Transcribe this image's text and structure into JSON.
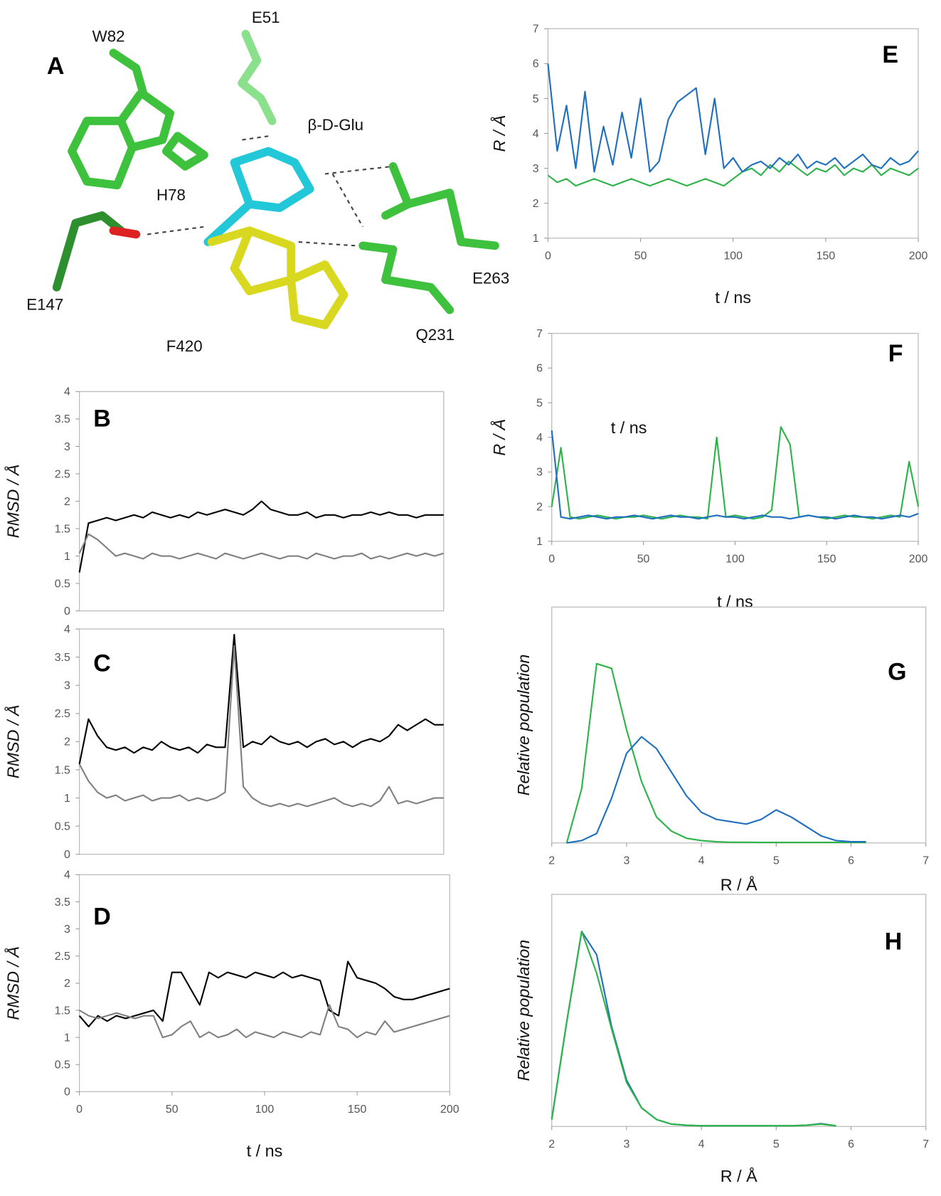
{
  "structure": {
    "panel_label": "A",
    "residues": [
      "W82",
      "E51",
      "β-D-Glu",
      "H78",
      "E147",
      "F420",
      "Q231",
      "E263"
    ]
  },
  "chart_data": [
    {
      "type": "line",
      "panel_label": "B",
      "y_label": "RMSD / Å",
      "xlim": [
        0,
        200
      ],
      "ylim": [
        0,
        4
      ],
      "yticks": [
        0,
        0.5,
        1,
        1.5,
        2,
        2.5,
        3,
        3.5,
        4
      ],
      "x": [
        0,
        5,
        10,
        15,
        20,
        25,
        30,
        35,
        40,
        45,
        50,
        55,
        60,
        65,
        70,
        75,
        80,
        85,
        90,
        95,
        100,
        105,
        110,
        115,
        120,
        125,
        130,
        135,
        140,
        145,
        150,
        155,
        160,
        165,
        170,
        175,
        180,
        185,
        190,
        195,
        200
      ],
      "series": [
        {
          "color": "#000000",
          "values": [
            0.7,
            1.6,
            1.65,
            1.7,
            1.65,
            1.7,
            1.75,
            1.7,
            1.8,
            1.75,
            1.7,
            1.75,
            1.7,
            1.8,
            1.75,
            1.8,
            1.85,
            1.8,
            1.75,
            1.85,
            2.0,
            1.85,
            1.8,
            1.75,
            1.75,
            1.8,
            1.7,
            1.75,
            1.75,
            1.7,
            1.75,
            1.75,
            1.8,
            1.75,
            1.8,
            1.75,
            1.75,
            1.7,
            1.75,
            1.75,
            1.75
          ]
        },
        {
          "color": "#808080",
          "values": [
            1.05,
            1.4,
            1.3,
            1.15,
            1.0,
            1.05,
            1.0,
            0.95,
            1.05,
            1.0,
            1.0,
            0.95,
            1.0,
            1.05,
            1.0,
            0.95,
            1.05,
            1.0,
            0.95,
            1.0,
            1.05,
            1.0,
            0.95,
            1.0,
            1.0,
            0.95,
            1.05,
            1.0,
            0.95,
            1.0,
            1.0,
            1.05,
            0.95,
            1.0,
            0.95,
            1.0,
            1.05,
            1.0,
            1.05,
            1.0,
            1.05
          ]
        }
      ]
    },
    {
      "type": "line",
      "panel_label": "C",
      "y_label": "RMSD / Å",
      "xlim": [
        0,
        200
      ],
      "ylim": [
        0,
        4
      ],
      "yticks": [
        0,
        0.5,
        1,
        1.5,
        2,
        2.5,
        3,
        3.5,
        4
      ],
      "x": [
        0,
        5,
        10,
        15,
        20,
        25,
        30,
        35,
        40,
        45,
        50,
        55,
        60,
        65,
        70,
        75,
        80,
        85,
        90,
        95,
        100,
        105,
        110,
        115,
        120,
        125,
        130,
        135,
        140,
        145,
        150,
        155,
        160,
        165,
        170,
        175,
        180,
        185,
        190,
        195,
        200
      ],
      "series": [
        {
          "color": "#000000",
          "values": [
            1.6,
            2.4,
            2.1,
            1.9,
            1.85,
            1.9,
            1.8,
            1.9,
            1.85,
            2.0,
            1.9,
            1.85,
            1.9,
            1.8,
            1.95,
            1.9,
            1.9,
            3.9,
            1.9,
            2.0,
            1.95,
            2.1,
            2.0,
            1.95,
            2.0,
            1.9,
            2.0,
            2.05,
            1.95,
            2.0,
            1.9,
            2.0,
            2.05,
            2.0,
            2.1,
            2.3,
            2.2,
            2.3,
            2.4,
            2.3,
            2.3
          ]
        },
        {
          "color": "#808080",
          "values": [
            1.6,
            1.3,
            1.1,
            1.0,
            1.05,
            0.95,
            1.0,
            1.05,
            0.95,
            1.0,
            1.0,
            1.05,
            0.95,
            1.0,
            0.95,
            1.0,
            1.1,
            3.7,
            1.2,
            1.0,
            0.9,
            0.85,
            0.9,
            0.85,
            0.9,
            0.85,
            0.9,
            0.95,
            1.0,
            0.9,
            0.85,
            0.9,
            0.85,
            0.95,
            1.2,
            0.9,
            0.95,
            0.9,
            0.95,
            1.0,
            1.0
          ]
        }
      ]
    },
    {
      "type": "line",
      "panel_label": "D",
      "y_label": "RMSD / Å",
      "x_label": "t / ns",
      "xlim": [
        0,
        200
      ],
      "xticks": [
        0,
        50,
        100,
        150,
        200
      ],
      "ylim": [
        0,
        4
      ],
      "yticks": [
        0,
        0.5,
        1,
        1.5,
        2,
        2.5,
        3,
        3.5,
        4
      ],
      "x": [
        0,
        5,
        10,
        15,
        20,
        25,
        30,
        35,
        40,
        45,
        50,
        55,
        60,
        65,
        70,
        75,
        80,
        85,
        90,
        95,
        100,
        105,
        110,
        115,
        120,
        125,
        130,
        135,
        140,
        145,
        150,
        155,
        160,
        165,
        170,
        175,
        180,
        185,
        190,
        195,
        200
      ],
      "series": [
        {
          "color": "#000000",
          "values": [
            1.4,
            1.2,
            1.4,
            1.3,
            1.4,
            1.35,
            1.4,
            1.45,
            1.5,
            1.3,
            2.2,
            2.2,
            1.9,
            1.6,
            2.2,
            2.1,
            2.2,
            2.15,
            2.1,
            2.2,
            2.15,
            2.1,
            2.2,
            2.1,
            2.15,
            2.1,
            2.05,
            1.5,
            1.4,
            2.4,
            2.1,
            2.05,
            2.0,
            1.9,
            1.75,
            1.7,
            1.7,
            1.75,
            1.8,
            1.85,
            1.9
          ]
        },
        {
          "color": "#808080",
          "values": [
            1.5,
            1.4,
            1.35,
            1.4,
            1.45,
            1.4,
            1.35,
            1.4,
            1.4,
            1.0,
            1.05,
            1.2,
            1.3,
            1.0,
            1.1,
            1.0,
            1.05,
            1.15,
            1.0,
            1.1,
            1.05,
            1.0,
            1.1,
            1.05,
            1.0,
            1.1,
            1.05,
            1.6,
            1.2,
            1.15,
            1.0,
            1.1,
            1.05,
            1.3,
            1.1,
            1.15,
            1.2,
            1.25,
            1.3,
            1.35,
            1.4
          ]
        }
      ]
    },
    {
      "type": "line",
      "panel_label": "E",
      "y_label": "R / Å",
      "x_label": "t / ns",
      "xlim": [
        0,
        200
      ],
      "xticks": [
        0,
        50,
        100,
        150,
        200
      ],
      "ylim": [
        1,
        7
      ],
      "yticks": [
        1,
        2,
        3,
        4,
        5,
        6,
        7
      ],
      "x": [
        0,
        5,
        10,
        15,
        20,
        25,
        30,
        35,
        40,
        45,
        50,
        55,
        60,
        65,
        70,
        75,
        80,
        85,
        90,
        95,
        100,
        105,
        110,
        115,
        120,
        125,
        130,
        135,
        140,
        145,
        150,
        155,
        160,
        165,
        170,
        175,
        180,
        185,
        190,
        195,
        200
      ],
      "series": [
        {
          "color": "#2db34a",
          "values": [
            2.8,
            2.6,
            2.7,
            2.5,
            2.6,
            2.7,
            2.6,
            2.5,
            2.6,
            2.7,
            2.6,
            2.5,
            2.6,
            2.7,
            2.6,
            2.5,
            2.6,
            2.7,
            2.6,
            2.5,
            2.7,
            2.9,
            3.0,
            2.8,
            3.1,
            2.9,
            3.2,
            3.0,
            2.8,
            3.0,
            2.9,
            3.1,
            2.8,
            3.0,
            2.9,
            3.1,
            2.8,
            3.0,
            2.9,
            2.8,
            3.0
          ]
        },
        {
          "color": "#1f6fbf",
          "values": [
            6.0,
            3.5,
            4.8,
            3.0,
            5.2,
            2.9,
            4.2,
            3.1,
            4.6,
            3.3,
            5.0,
            2.9,
            3.2,
            4.4,
            4.9,
            5.1,
            5.3,
            3.4,
            5.0,
            3.0,
            3.3,
            2.9,
            3.1,
            3.2,
            3.0,
            3.3,
            3.1,
            3.4,
            3.0,
            3.2,
            3.1,
            3.3,
            3.0,
            3.2,
            3.4,
            3.1,
            3.0,
            3.3,
            3.1,
            3.2,
            3.5
          ]
        }
      ]
    },
    {
      "type": "line",
      "panel_label": "F",
      "y_label": "R / Å",
      "x_label": "t / ns",
      "annotation": "t / ns",
      "xlim": [
        0,
        200
      ],
      "xticks": [
        0,
        50,
        100,
        150,
        200
      ],
      "ylim": [
        1,
        7
      ],
      "yticks": [
        1,
        2,
        3,
        4,
        5,
        6,
        7
      ],
      "x": [
        0,
        5,
        10,
        15,
        20,
        25,
        30,
        35,
        40,
        45,
        50,
        55,
        60,
        65,
        70,
        75,
        80,
        85,
        90,
        95,
        100,
        105,
        110,
        115,
        120,
        125,
        130,
        135,
        140,
        145,
        150,
        155,
        160,
        165,
        170,
        175,
        180,
        185,
        190,
        195,
        200
      ],
      "series": [
        {
          "color": "#2db34a",
          "values": [
            2.0,
            3.7,
            1.7,
            1.65,
            1.7,
            1.75,
            1.7,
            1.65,
            1.7,
            1.7,
            1.75,
            1.7,
            1.65,
            1.7,
            1.75,
            1.7,
            1.7,
            1.65,
            4.0,
            1.7,
            1.75,
            1.7,
            1.65,
            1.7,
            1.9,
            4.3,
            3.8,
            1.7,
            1.75,
            1.7,
            1.65,
            1.7,
            1.75,
            1.7,
            1.7,
            1.65,
            1.7,
            1.75,
            1.7,
            3.3,
            2.0
          ]
        },
        {
          "color": "#1f6fbf",
          "values": [
            4.2,
            1.7,
            1.65,
            1.7,
            1.75,
            1.7,
            1.65,
            1.7,
            1.7,
            1.75,
            1.7,
            1.65,
            1.7,
            1.75,
            1.7,
            1.7,
            1.65,
            1.7,
            1.75,
            1.7,
            1.7,
            1.65,
            1.7,
            1.75,
            1.7,
            1.7,
            1.65,
            1.7,
            1.75,
            1.7,
            1.7,
            1.65,
            1.7,
            1.75,
            1.7,
            1.7,
            1.65,
            1.7,
            1.75,
            1.7,
            1.8
          ]
        }
      ]
    },
    {
      "type": "line",
      "panel_label": "G",
      "y_label": "Relative population",
      "x_label": "R / Å",
      "xlim": [
        2,
        7
      ],
      "xticks": [
        2,
        3,
        4,
        5,
        6,
        7
      ],
      "ylim": [
        0,
        1
      ],
      "x": [
        2.2,
        2.4,
        2.6,
        2.8,
        3.0,
        3.2,
        3.4,
        3.6,
        3.8,
        4.0,
        4.2,
        4.4,
        4.6,
        4.8,
        5.0,
        5.2,
        5.4,
        5.6,
        5.8,
        6.0,
        6.2
      ],
      "series": [
        {
          "color": "#2db34a",
          "values": [
            0,
            0.23,
            0.76,
            0.74,
            0.48,
            0.26,
            0.11,
            0.05,
            0.02,
            0.01,
            0.005,
            0.003,
            0.003,
            0.002,
            0.002,
            0.002,
            0.002,
            0.002,
            0.002,
            0.002,
            0.002
          ]
        },
        {
          "color": "#1f6fbf",
          "values": [
            0,
            0.01,
            0.04,
            0.19,
            0.38,
            0.45,
            0.4,
            0.3,
            0.2,
            0.13,
            0.1,
            0.09,
            0.08,
            0.1,
            0.14,
            0.11,
            0.07,
            0.03,
            0.01,
            0.005,
            0.005
          ]
        }
      ]
    },
    {
      "type": "line",
      "panel_label": "H",
      "y_label": "Relative population",
      "x_label": "R / Å",
      "xlim": [
        2,
        7
      ],
      "xticks": [
        2,
        3,
        4,
        5,
        6,
        7
      ],
      "ylim": [
        0,
        1
      ],
      "x": [
        2.0,
        2.2,
        2.4,
        2.6,
        2.8,
        3.0,
        3.2,
        3.4,
        3.6,
        3.8,
        4.0,
        4.2,
        4.4,
        4.6,
        4.8,
        5.0,
        5.2,
        5.4,
        5.6,
        5.8
      ],
      "series": [
        {
          "color": "#1f6fbf",
          "values": [
            0.03,
            0.45,
            0.84,
            0.74,
            0.43,
            0.2,
            0.08,
            0.03,
            0.01,
            0.005,
            0.003,
            0.003,
            0.003,
            0.003,
            0.003,
            0.003,
            0.003,
            0.005,
            0.012,
            0.003
          ]
        },
        {
          "color": "#2db34a",
          "values": [
            0.03,
            0.45,
            0.84,
            0.66,
            0.42,
            0.19,
            0.08,
            0.03,
            0.01,
            0.005,
            0.003,
            0.003,
            0.003,
            0.003,
            0.003,
            0.003,
            0.003,
            0.005,
            0.01,
            0.003
          ]
        }
      ]
    }
  ]
}
